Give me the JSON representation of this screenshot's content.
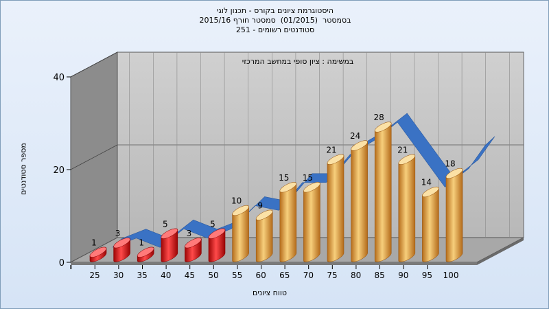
{
  "chart_data": {
    "type": "bar",
    "title_lines": [
      "היסטוגרמת ציונים בקורס - תכנון לוגי",
      "בסמסטר  (01/2015)  סמסטר חורף 2015/16",
      "סטודנטים רשומים - 251"
    ],
    "subtitle": "במשימה : ציון סופי במחשב המרכזי",
    "xlabel": "טווח ציונים",
    "ylabel": "מספר סטודנטים",
    "categories": [
      "25",
      "30",
      "35",
      "40",
      "45",
      "50",
      "55",
      "60",
      "65",
      "70",
      "75",
      "80",
      "85",
      "90",
      "95",
      "100"
    ],
    "values": [
      1,
      3,
      1,
      5,
      3,
      5,
      10,
      9,
      15,
      15,
      21,
      24,
      28,
      21,
      14,
      18
    ],
    "y_ticks": [
      0,
      20,
      40
    ],
    "ylim": [
      0,
      40
    ],
    "fail_threshold": 55,
    "colors": {
      "fail_bar": "#d81818",
      "pass_bar": "#e8a948",
      "trend_ribbon": "#3a72c4",
      "back_wall": "#c2c2c2",
      "side_wall": "#8c8c8c",
      "floor": "#a8a8a8"
    },
    "legend": "none",
    "grid": true,
    "trend_line": true,
    "data_labels": true
  }
}
